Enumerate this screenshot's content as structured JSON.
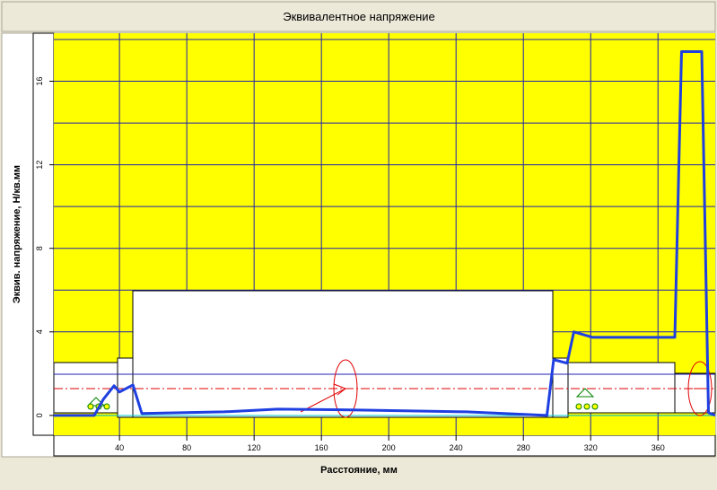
{
  "chart_data": {
    "type": "line",
    "title": "Эквивалентное напряжение",
    "x_label": "Расстояние, мм",
    "y_label": "Эквив. напряжение, Н/кв.мм",
    "xlim": [
      1,
      394
    ],
    "ylim": [
      -0.95,
      18.3
    ],
    "xticks": [
      40,
      80,
      120,
      160,
      200,
      240,
      280,
      320,
      360
    ],
    "yticks": [
      0,
      4,
      8,
      12,
      16
    ],
    "grid_yticks": [
      0,
      2,
      4,
      6,
      8,
      10,
      12,
      14,
      16,
      18
    ],
    "grid": true,
    "background": "#ffff00",
    "grid_color": "#2020b0",
    "series": [
      {
        "name": "Эквивалентное напряжение",
        "color": "#1f3fe0",
        "x": [
          1,
          25,
          30.4,
          36.8,
          40,
          48,
          53.3,
          102,
          134,
          182,
          246,
          294,
          298,
          306,
          310,
          321,
          370,
          374,
          386,
          390,
          394
        ],
        "values": [
          0,
          0,
          0.77,
          1.42,
          1.12,
          1.46,
          0.09,
          0.17,
          0.3,
          0.26,
          0.17,
          0,
          2.67,
          2.5,
          4.0,
          3.74,
          3.74,
          17.42,
          17.42,
          0.13,
          0
        ]
      }
    ]
  }
}
